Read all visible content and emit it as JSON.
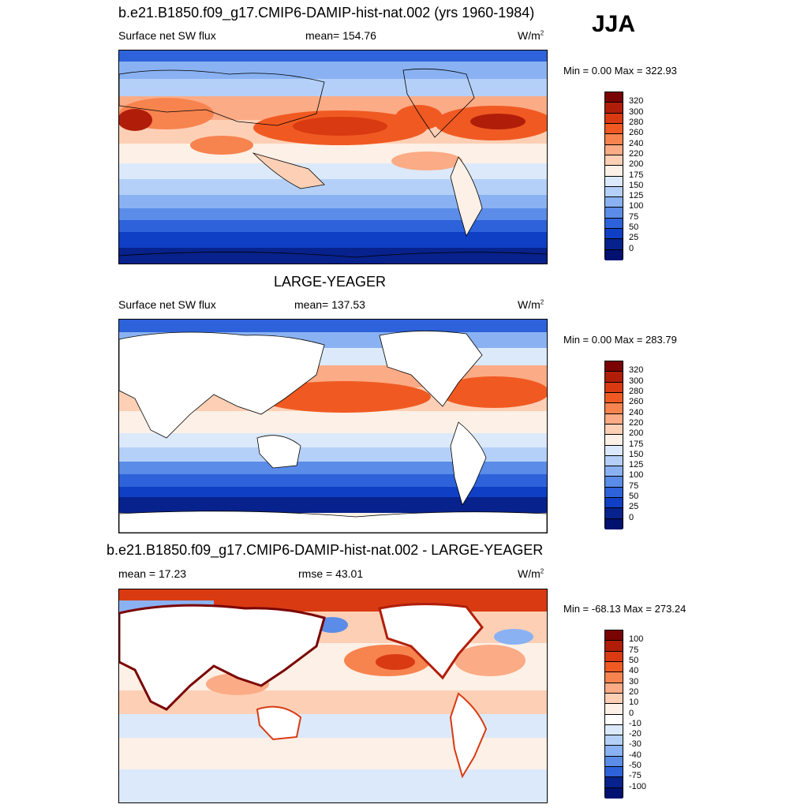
{
  "season": "JJA",
  "panels": [
    {
      "title": "b.e21.B1850.f09_g17.CMIP6-DAMIP-hist-nat.002 (yrs 1960-1984)",
      "left_label": "Surface net SW flux",
      "center_label": "mean= 154.76",
      "unit_base": "W/m",
      "unit_sup": "2",
      "minmax": "Min =   0.00 Max = 322.93",
      "colorbar_labels": [
        "320",
        "300",
        "280",
        "260",
        "240",
        "220",
        "200",
        "175",
        "150",
        "125",
        "100",
        "75",
        "50",
        "25",
        "0"
      ],
      "colorbar_colors": [
        "#7a0403",
        "#b01e0a",
        "#d93a12",
        "#f05a22",
        "#f7834f",
        "#fbab85",
        "#fdd0b6",
        "#fdf0e6",
        "#dbe9fb",
        "#b4d0f8",
        "#8ab2f2",
        "#5a8ce8",
        "#2d62da",
        "#0f3fc4",
        "#07228c",
        "#001170"
      ]
    },
    {
      "title": "LARGE-YEAGER",
      "left_label": "Surface net SW flux",
      "center_label": "mean= 137.53",
      "unit_base": "W/m",
      "unit_sup": "2",
      "minmax": "Min =   0.00 Max = 283.79",
      "colorbar_labels": [
        "320",
        "300",
        "280",
        "260",
        "240",
        "220",
        "200",
        "175",
        "150",
        "125",
        "100",
        "75",
        "50",
        "25",
        "0"
      ],
      "colorbar_colors": [
        "#7a0403",
        "#b01e0a",
        "#d93a12",
        "#f05a22",
        "#f7834f",
        "#fbab85",
        "#fdd0b6",
        "#fdf0e6",
        "#dbe9fb",
        "#b4d0f8",
        "#8ab2f2",
        "#5a8ce8",
        "#2d62da",
        "#0f3fc4",
        "#07228c",
        "#001170"
      ]
    },
    {
      "title": "b.e21.B1850.f09_g17.CMIP6-DAMIP-hist-nat.002 - LARGE-YEAGER",
      "left_label": "mean =  17.23",
      "center_label": "rmse =  43.01",
      "unit_base": "W/m",
      "unit_sup": "2",
      "minmax": "Min = -68.13 Max = 273.24",
      "colorbar_labels": [
        "100",
        "75",
        "50",
        "40",
        "30",
        "20",
        "10",
        "0",
        "-10",
        "-20",
        "-30",
        "-40",
        "-50",
        "-75",
        "-100"
      ],
      "colorbar_colors": [
        "#7a0403",
        "#b01e0a",
        "#d93a12",
        "#f05a22",
        "#f7834f",
        "#fbab85",
        "#fdd0b6",
        "#fdf0e6",
        "#ffffff",
        "#dbe9fb",
        "#b4d0f8",
        "#8ab2f2",
        "#5a8ce8",
        "#2d62da",
        "#07228c",
        "#001170"
      ]
    }
  ]
}
